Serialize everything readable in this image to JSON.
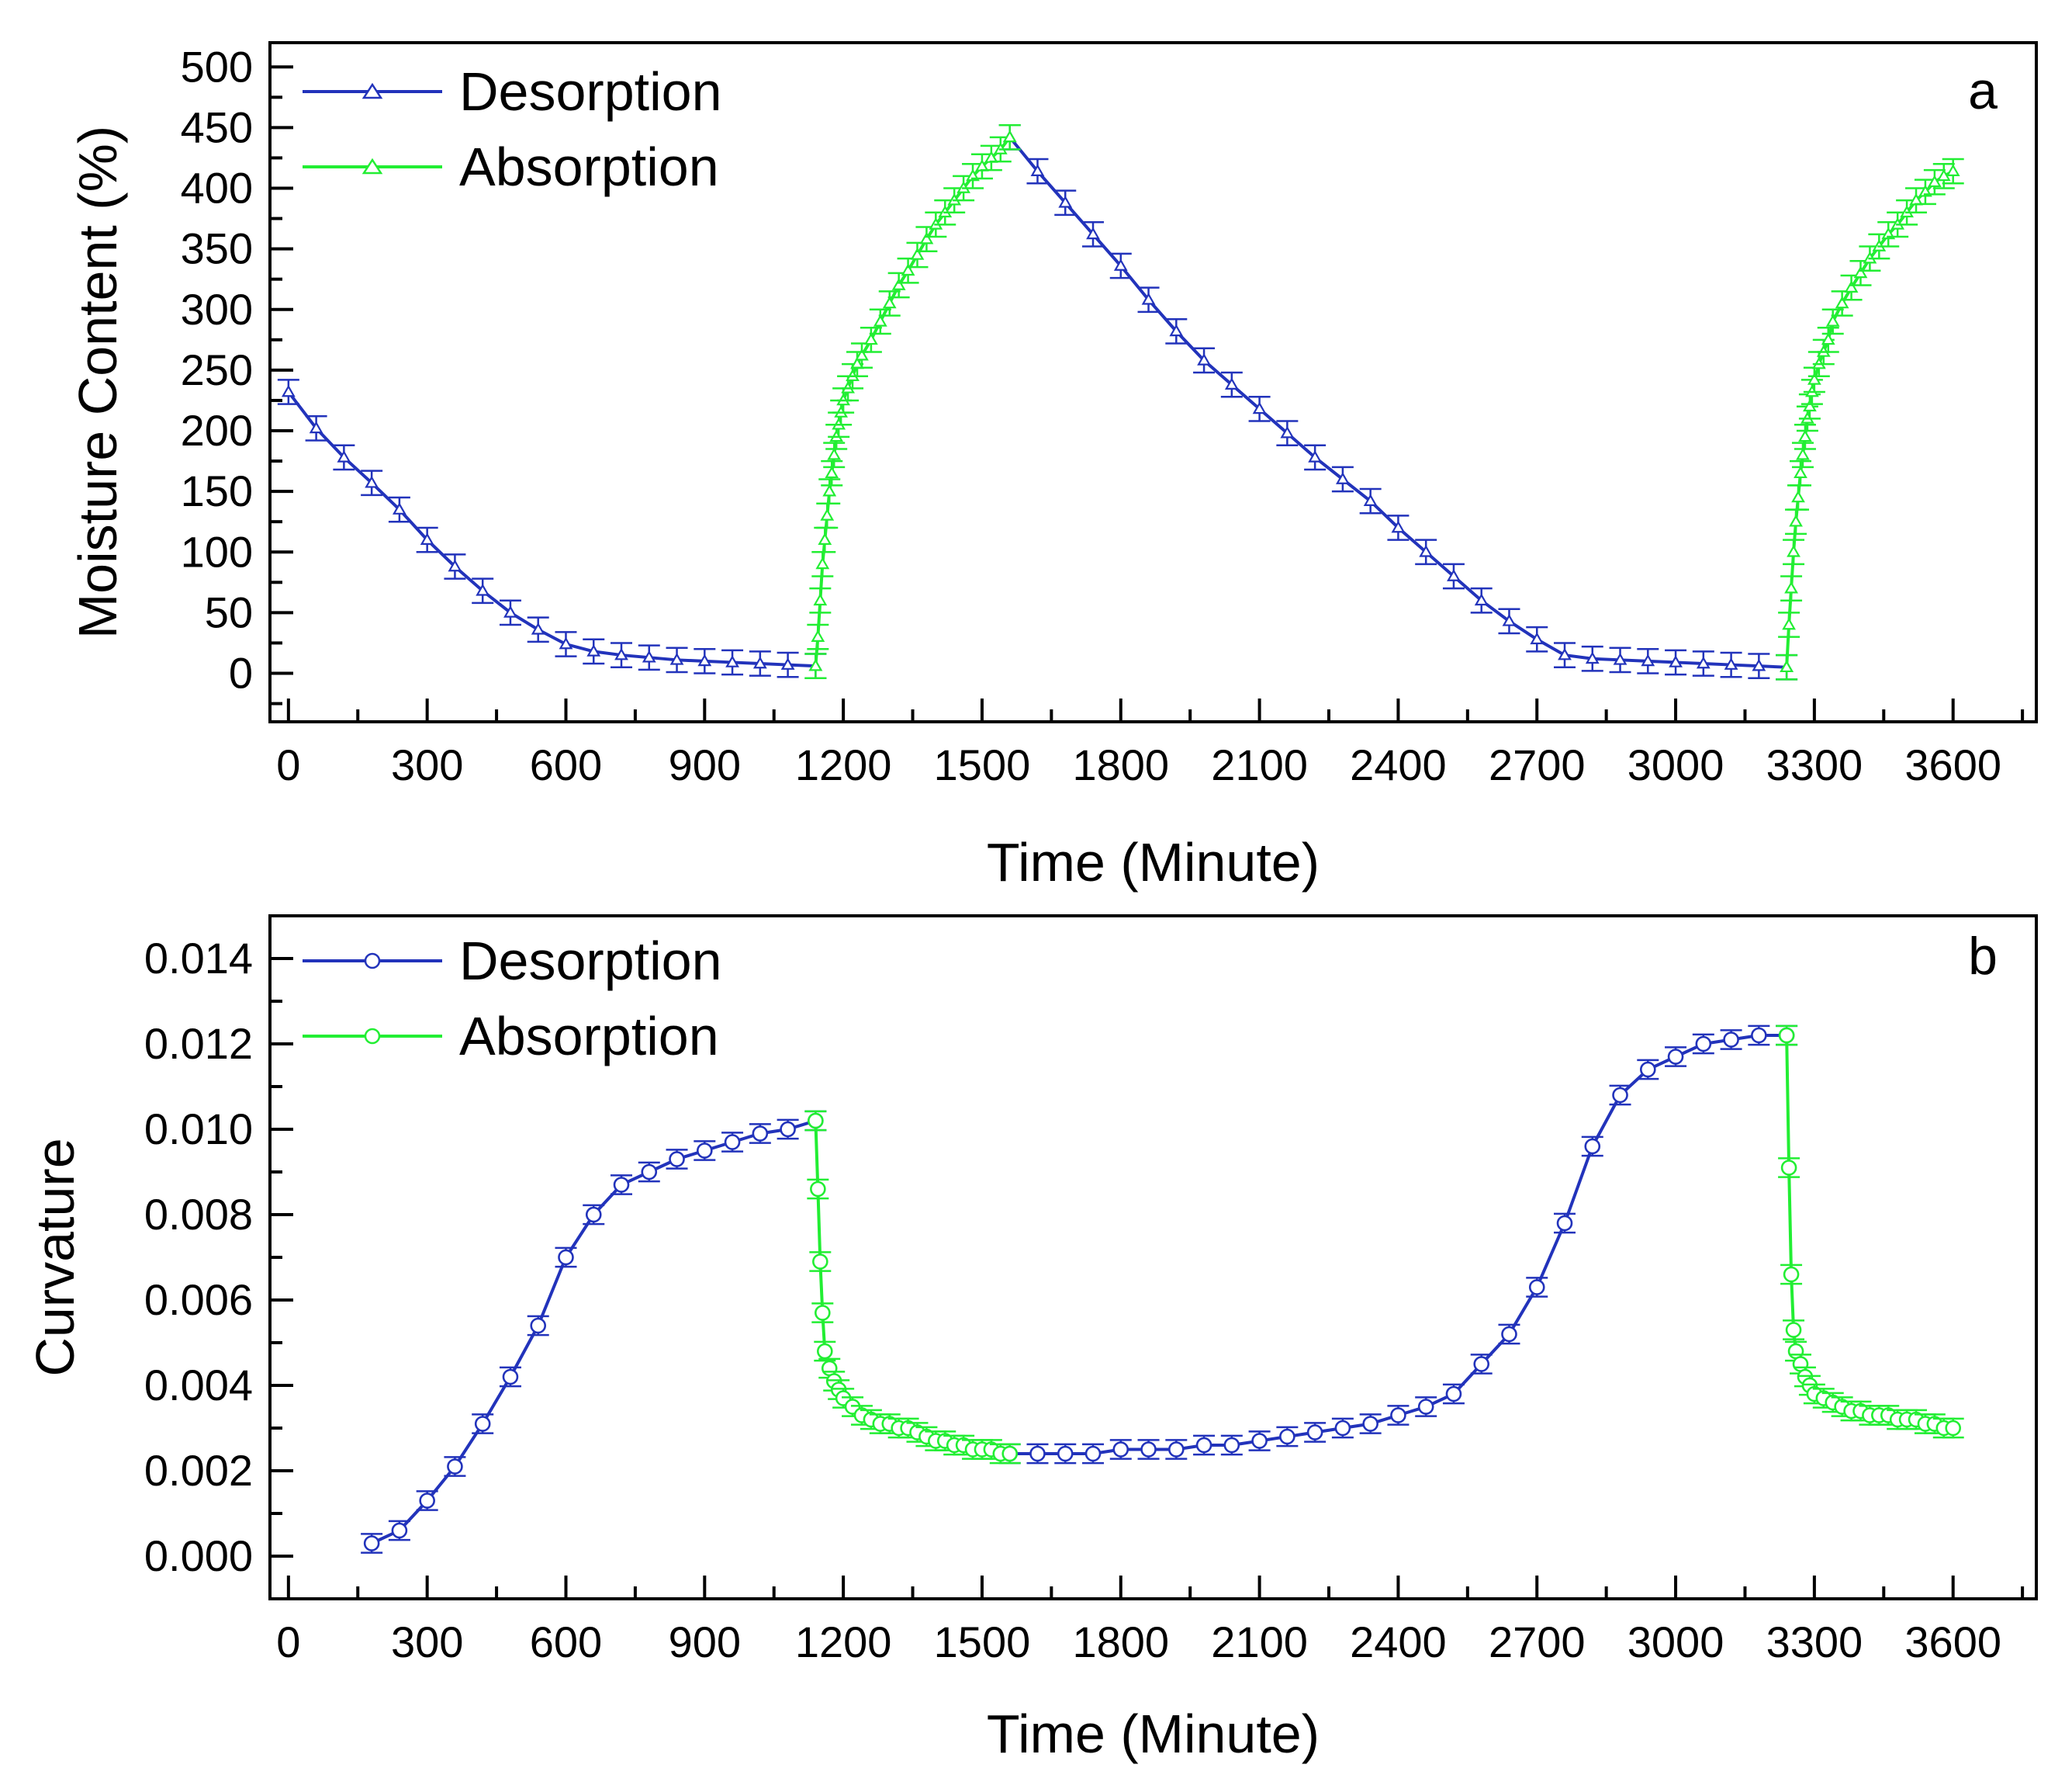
{
  "chart_data": [
    {
      "type": "line",
      "panel_label": "a",
      "xlabel": "Time (Minute)",
      "ylabel": "Moisture Content (%)",
      "xlim": [
        -40,
        3780
      ],
      "ylim": [
        -40,
        520
      ],
      "xticks": [
        "0",
        "300",
        "600",
        "900",
        "1200",
        "1500",
        "1800",
        "2100",
        "2400",
        "2700",
        "3000",
        "3300",
        "3600"
      ],
      "yticks": [
        "0",
        "50",
        "100",
        "150",
        "200",
        "250",
        "300",
        "350",
        "400",
        "450",
        "500"
      ],
      "legend_position": "top-left",
      "marker": "triangle",
      "error_bars": true,
      "series": [
        {
          "name": "Desorption",
          "color": "#2233bb",
          "segments": [
            {
              "x": [
                0,
                60,
                120,
                180,
                240,
                300,
                360,
                420,
                480,
                540,
                600,
                660,
                720,
                780,
                840,
                900,
                960,
                1020,
                1080,
                1140
              ],
              "y": [
                232,
                202,
                178,
                157,
                135,
                110,
                88,
                68,
                50,
                36,
                24,
                18,
                15,
                13,
                11,
                10,
                9,
                8,
                7,
                6
              ]
            },
            {
              "x": [
                1560,
                1620,
                1680,
                1740,
                1800,
                1860,
                1920,
                1980,
                2040,
                2100,
                2160,
                2220,
                2280,
                2340,
                2400,
                2460,
                2520,
                2580,
                2640,
                2700,
                2760,
                2820,
                2880,
                2940,
                3000,
                3060,
                3120,
                3180,
                3240
              ],
              "y": [
                442,
                414,
                388,
                362,
                336,
                308,
                282,
                258,
                238,
                218,
                198,
                178,
                160,
                142,
                120,
                100,
                80,
                60,
                43,
                28,
                15,
                12,
                11,
                10,
                9,
                8,
                7,
                6,
                5
              ]
            }
          ]
        },
        {
          "name": "Absorption",
          "color": "#22ee33",
          "segments": [
            {
              "x": [
                1140,
                1145,
                1150,
                1155,
                1160,
                1165,
                1170,
                1175,
                1180,
                1185,
                1190,
                1195,
                1200,
                1210,
                1220,
                1230,
                1240,
                1260,
                1280,
                1300,
                1320,
                1340,
                1360,
                1380,
                1400,
                1420,
                1440,
                1460,
                1480,
                1500,
                1520,
                1540,
                1560
              ],
              "y": [
                6,
                30,
                60,
                90,
                110,
                130,
                150,
                165,
                180,
                195,
                205,
                215,
                225,
                235,
                245,
                255,
                262,
                275,
                290,
                305,
                320,
                332,
                345,
                358,
                370,
                380,
                390,
                400,
                410,
                418,
                425,
                432,
                442
              ]
            },
            {
              "x": [
                3240,
                3245,
                3250,
                3255,
                3260,
                3265,
                3270,
                3275,
                3280,
                3285,
                3290,
                3295,
                3300,
                3310,
                3320,
                3330,
                3340,
                3360,
                3380,
                3400,
                3420,
                3440,
                3460,
                3480,
                3500,
                3520,
                3540,
                3560,
                3580,
                3600
              ],
              "y": [
                5,
                40,
                70,
                100,
                125,
                145,
                165,
                180,
                195,
                210,
                220,
                232,
                242,
                255,
                265,
                275,
                290,
                305,
                318,
                330,
                342,
                352,
                362,
                370,
                380,
                390,
                397,
                405,
                410,
                414
              ]
            }
          ]
        }
      ]
    },
    {
      "type": "line",
      "panel_label": "b",
      "xlabel": "Time (Minute)",
      "ylabel": "Curvature",
      "xlim": [
        -40,
        3780
      ],
      "ylim": [
        -0.001,
        0.015
      ],
      "xticks": [
        "0",
        "300",
        "600",
        "900",
        "1200",
        "1500",
        "1800",
        "2100",
        "2400",
        "2700",
        "3000",
        "3300",
        "3600"
      ],
      "yticks": [
        "0.000",
        "0.002",
        "0.004",
        "0.006",
        "0.008",
        "0.010",
        "0.012",
        "0.014"
      ],
      "legend_position": "top-left",
      "marker": "circle",
      "error_bars": true,
      "series": [
        {
          "name": "Desorption",
          "color": "#2233bb",
          "segments": [
            {
              "x": [
                180,
                240,
                300,
                360,
                420,
                480,
                540,
                600,
                660,
                720,
                780,
                840,
                900,
                960,
                1020,
                1080,
                1140
              ],
              "y": [
                0.0003,
                0.0006,
                0.0013,
                0.0021,
                0.0031,
                0.0042,
                0.0054,
                0.007,
                0.008,
                0.0087,
                0.009,
                0.0093,
                0.0095,
                0.0097,
                0.0099,
                0.01,
                0.0102
              ]
            },
            {
              "x": [
                1560,
                1620,
                1680,
                1740,
                1800,
                1860,
                1920,
                1980,
                2040,
                2100,
                2160,
                2220,
                2280,
                2340,
                2400,
                2460,
                2520,
                2580,
                2640,
                2700,
                2760,
                2820,
                2880,
                2940,
                3000,
                3060,
                3120,
                3180,
                3240
              ],
              "y": [
                0.0024,
                0.0024,
                0.0024,
                0.0024,
                0.0025,
                0.0025,
                0.0025,
                0.0026,
                0.0026,
                0.0027,
                0.0028,
                0.0029,
                0.003,
                0.0031,
                0.0033,
                0.0035,
                0.0038,
                0.0045,
                0.0052,
                0.0063,
                0.0078,
                0.0096,
                0.0108,
                0.0114,
                0.0117,
                0.012,
                0.0121,
                0.0122,
                0.0122
              ]
            }
          ]
        },
        {
          "name": "Absorption",
          "color": "#22ee33",
          "segments": [
            {
              "x": [
                1140,
                1145,
                1150,
                1155,
                1160,
                1170,
                1180,
                1190,
                1200,
                1220,
                1240,
                1260,
                1280,
                1300,
                1320,
                1340,
                1360,
                1380,
                1400,
                1420,
                1440,
                1460,
                1480,
                1500,
                1520,
                1540,
                1560
              ],
              "y": [
                0.0102,
                0.0086,
                0.0069,
                0.0057,
                0.0048,
                0.0044,
                0.0041,
                0.0039,
                0.0037,
                0.0035,
                0.0033,
                0.0032,
                0.0031,
                0.0031,
                0.003,
                0.003,
                0.0029,
                0.0028,
                0.0027,
                0.0027,
                0.0026,
                0.0026,
                0.0025,
                0.0025,
                0.0025,
                0.0024,
                0.0024
              ]
            },
            {
              "x": [
                3240,
                3245,
                3250,
                3255,
                3260,
                3270,
                3280,
                3290,
                3300,
                3320,
                3340,
                3360,
                3380,
                3400,
                3420,
                3440,
                3460,
                3480,
                3500,
                3520,
                3540,
                3560,
                3580,
                3600
              ],
              "y": [
                0.0122,
                0.0091,
                0.0066,
                0.0053,
                0.0048,
                0.0045,
                0.0042,
                0.004,
                0.0038,
                0.0037,
                0.0036,
                0.0035,
                0.0034,
                0.0034,
                0.0033,
                0.0033,
                0.0033,
                0.0032,
                0.0032,
                0.0032,
                0.0031,
                0.0031,
                0.003,
                0.003
              ]
            }
          ]
        }
      ]
    }
  ]
}
